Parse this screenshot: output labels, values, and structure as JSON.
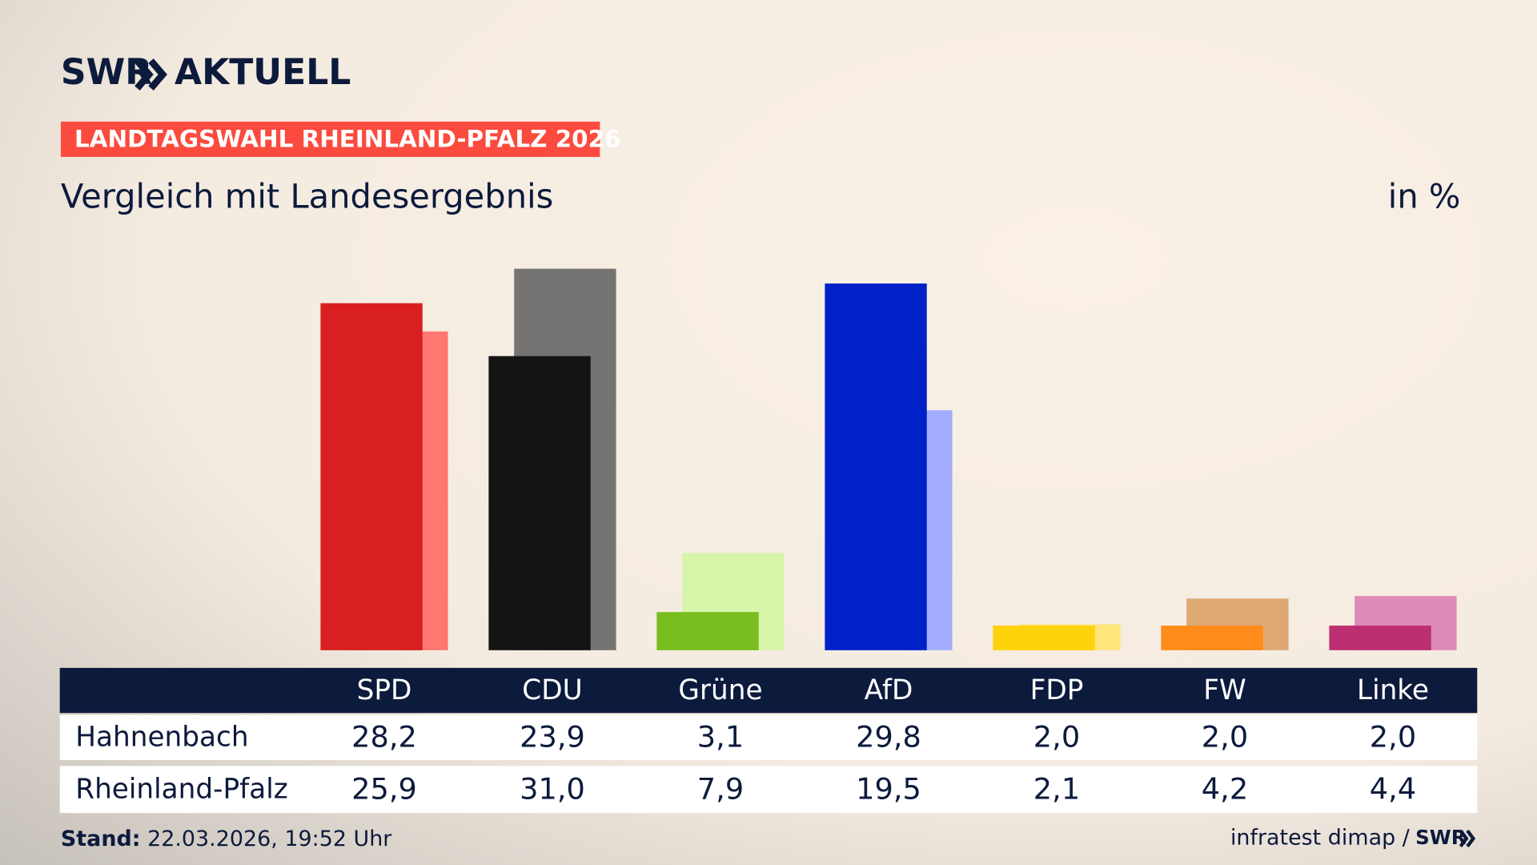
{
  "header": {
    "brand": "SWR",
    "brand_suffix": "AKTUELL",
    "tag": "LANDTAGSWAHL RHEINLAND-PFALZ 2026"
  },
  "chart_data": {
    "type": "bar",
    "subtitle": "Vergleich mit Landesergebnis",
    "unit": "in %",
    "categories": [
      "SPD",
      "CDU",
      "Grüne",
      "AfD",
      "FDP",
      "FW",
      "Linke"
    ],
    "series": [
      {
        "name": "Hahnenbach",
        "colors": [
          "#d91f1f",
          "#141414",
          "#78be1e",
          "#0021c8",
          "#ffd20a",
          "#ff8c1a",
          "#bc2f72"
        ],
        "values": [
          28.2,
          23.9,
          3.1,
          29.8,
          2.0,
          2.0,
          2.0
        ],
        "value_labels": [
          "28,2",
          "23,9",
          "3,1",
          "29,8",
          "2,0",
          "2,0",
          "2,0"
        ]
      },
      {
        "name": "Rheinland-Pfalz",
        "colors": [
          "#ff7770",
          "#757472",
          "#d6f5a8",
          "#a3adff",
          "#ffe57a",
          "#dda874",
          "#df8ab8"
        ],
        "values": [
          25.9,
          31.0,
          7.9,
          19.5,
          2.1,
          4.2,
          4.4
        ],
        "value_labels": [
          "25,9",
          "31,0",
          "7,9",
          "19,5",
          "2,1",
          "4,2",
          "4,4"
        ]
      }
    ]
  },
  "footer": {
    "stand_label": "Stand:",
    "stand": "22.03.2026, 19:52 Uhr",
    "source": "infratest dimap /",
    "source_brand": "SWR"
  }
}
